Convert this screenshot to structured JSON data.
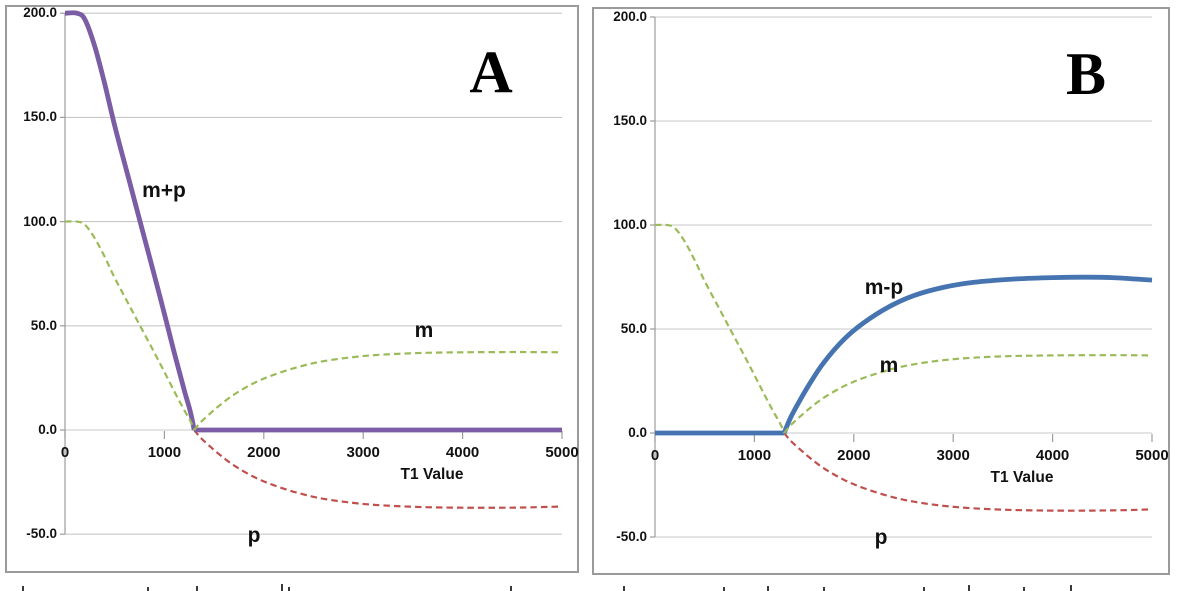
{
  "figure": {
    "colors": {
      "m_plus_p": "#7a5da4",
      "m_minus_p": "#4574b0",
      "m": "#9bbb59",
      "p": "#c0504d",
      "gridline": "#c8c8c8",
      "axis": "#9c9c9c",
      "panel_border": "#9a9a9a",
      "text": "#111111"
    },
    "panels": [
      {
        "corner_label": "A",
        "x_axis": {
          "title": "T1 Value",
          "tick_labels": [
            "0",
            "1000",
            "2000",
            "3000",
            "4000",
            "5000"
          ]
        },
        "y_axis": {
          "tick_labels": [
            "200.0",
            "150.0",
            "100.0",
            "50.0",
            "0.0",
            "-50.0"
          ]
        },
        "curve_labels": {
          "main": "m+p",
          "m": "m",
          "p": "p"
        }
      },
      {
        "corner_label": "B",
        "x_axis": {
          "title": "T1 Value",
          "tick_labels": [
            "0",
            "1000",
            "2000",
            "3000",
            "4000",
            "5000"
          ]
        },
        "y_axis": {
          "tick_labels": [
            "200.0",
            "150.0",
            "100.0",
            "50.0",
            "0.0",
            "-50.0"
          ]
        },
        "curve_labels": {
          "main": "m-p",
          "m": "m",
          "p": "p"
        }
      }
    ],
    "bottom_edge_fragments": [
      {
        "x": 22,
        "h": 5
      },
      {
        "x": 147,
        "h": 4
      },
      {
        "x": 196,
        "h": 5
      },
      {
        "x": 281,
        "h": 7
      },
      {
        "x": 288,
        "h": 4
      },
      {
        "x": 510,
        "h": 5
      },
      {
        "x": 623,
        "h": 5
      },
      {
        "x": 723,
        "h": 4
      },
      {
        "x": 767,
        "h": 5
      },
      {
        "x": 823,
        "h": 4
      },
      {
        "x": 923,
        "h": 4
      },
      {
        "x": 968,
        "h": 6
      },
      {
        "x": 1023,
        "h": 4
      },
      {
        "x": 1070,
        "h": 6
      }
    ]
  },
  "chart_data": [
    {
      "type": "line",
      "panel": "A",
      "xlabel": "T1 Value",
      "ylabel": "",
      "xlim": [
        0,
        5000
      ],
      "ylim": [
        -50,
        200
      ],
      "x_ticks": [
        0,
        1000,
        2000,
        3000,
        4000,
        5000
      ],
      "y_ticks": [
        200,
        150,
        100,
        50,
        0,
        -50
      ],
      "grid": "horizontal",
      "legend": "inline-labels",
      "series": [
        {
          "name": "p",
          "style": "dashed",
          "color_key": "p",
          "segments": [
            [
              [
                1300,
                0
              ],
              [
                1360,
                -3.5
              ],
              [
                1450,
                -7.5
              ],
              [
                1560,
                -12
              ],
              [
                1700,
                -17
              ],
              [
                1900,
                -22.5
              ],
              [
                2100,
                -26.5
              ],
              [
                2350,
                -30.3
              ],
              [
                2600,
                -33
              ],
              [
                2900,
                -35
              ],
              [
                3200,
                -36.2
              ],
              [
                3600,
                -37
              ],
              [
                4000,
                -37.3
              ],
              [
                4400,
                -37.3
              ],
              [
                4700,
                -37.1
              ],
              [
                5000,
                -36.7
              ]
            ]
          ]
        },
        {
          "name": "m+p",
          "style": "solid",
          "color_key": "m_plus_p",
          "segments": [
            [
              [
                0,
                200
              ],
              [
                120,
                200
              ],
              [
                200,
                197
              ],
              [
                300,
                184
              ],
              [
                400,
                166
              ],
              [
                500,
                146
              ],
              [
                650,
                119
              ],
              [
                800,
                92
              ],
              [
                950,
                65
              ],
              [
                1100,
                37
              ],
              [
                1200,
                19
              ],
              [
                1260,
                9
              ],
              [
                1300,
                0
              ]
            ],
            [
              [
                1300,
                0
              ],
              [
                5000,
                0
              ]
            ]
          ]
        },
        {
          "name": "m",
          "style": "dashed",
          "color_key": "m",
          "segments": [
            [
              [
                0,
                100
              ],
              [
                120,
                100
              ],
              [
                200,
                98.5
              ],
              [
                300,
                92
              ],
              [
                400,
                83
              ],
              [
                500,
                73
              ],
              [
                650,
                59.5
              ],
              [
                800,
                46
              ],
              [
                950,
                32.5
              ],
              [
                1100,
                18.5
              ],
              [
                1200,
                9.5
              ],
              [
                1260,
                4.5
              ],
              [
                1300,
                0
              ]
            ],
            [
              [
                1300,
                0
              ],
              [
                1360,
                3.5
              ],
              [
                1450,
                7.5
              ],
              [
                1560,
                12
              ],
              [
                1700,
                17
              ],
              [
                1900,
                22.5
              ],
              [
                2100,
                26.5
              ],
              [
                2350,
                30.3
              ],
              [
                2600,
                33
              ],
              [
                2900,
                35
              ],
              [
                3200,
                36.2
              ],
              [
                3600,
                37
              ],
              [
                4000,
                37.3
              ],
              [
                4400,
                37.4
              ],
              [
                4700,
                37.4
              ],
              [
                5000,
                37.3
              ]
            ]
          ]
        }
      ]
    },
    {
      "type": "line",
      "panel": "B",
      "xlabel": "T1 Value",
      "ylabel": "",
      "xlim": [
        0,
        5000
      ],
      "ylim": [
        -50,
        200
      ],
      "x_ticks": [
        0,
        1000,
        2000,
        3000,
        4000,
        5000
      ],
      "y_ticks": [
        200,
        150,
        100,
        50,
        0,
        -50
      ],
      "grid": "horizontal",
      "legend": "inline-labels",
      "series": [
        {
          "name": "p",
          "style": "dashed",
          "color_key": "p",
          "segments": [
            [
              [
                1300,
                0
              ],
              [
                1360,
                -3.5
              ],
              [
                1450,
                -7.5
              ],
              [
                1560,
                -12
              ],
              [
                1700,
                -17
              ],
              [
                1900,
                -22.5
              ],
              [
                2100,
                -26.5
              ],
              [
                2350,
                -30.3
              ],
              [
                2600,
                -33
              ],
              [
                2900,
                -35
              ],
              [
                3200,
                -36.2
              ],
              [
                3600,
                -37
              ],
              [
                4000,
                -37.3
              ],
              [
                4400,
                -37.3
              ],
              [
                4700,
                -37.1
              ],
              [
                5000,
                -36.7
              ]
            ]
          ]
        },
        {
          "name": "m-p",
          "style": "solid",
          "color_key": "m_minus_p",
          "segments": [
            [
              [
                0,
                0
              ],
              [
                1300,
                0
              ]
            ],
            [
              [
                1300,
                0
              ],
              [
                1360,
                7
              ],
              [
                1450,
                15
              ],
              [
                1560,
                24
              ],
              [
                1700,
                34
              ],
              [
                1900,
                45
              ],
              [
                2100,
                53
              ],
              [
                2350,
                60.6
              ],
              [
                2600,
                66
              ],
              [
                2900,
                70
              ],
              [
                3200,
                72.4
              ],
              [
                3600,
                74
              ],
              [
                4000,
                74.7
              ],
              [
                4300,
                74.9
              ],
              [
                4600,
                74.7
              ],
              [
                5000,
                73.5
              ]
            ]
          ]
        },
        {
          "name": "m",
          "style": "dashed",
          "color_key": "m",
          "segments": [
            [
              [
                0,
                100
              ],
              [
                120,
                100
              ],
              [
                200,
                98.5
              ],
              [
                300,
                92
              ],
              [
                400,
                83
              ],
              [
                500,
                73
              ],
              [
                650,
                59.5
              ],
              [
                800,
                46
              ],
              [
                950,
                32.5
              ],
              [
                1100,
                18.5
              ],
              [
                1200,
                9.5
              ],
              [
                1260,
                4.5
              ],
              [
                1300,
                0
              ]
            ],
            [
              [
                1300,
                0
              ],
              [
                1360,
                3.5
              ],
              [
                1450,
                7.5
              ],
              [
                1560,
                12
              ],
              [
                1700,
                17
              ],
              [
                1900,
                22.5
              ],
              [
                2100,
                26.5
              ],
              [
                2350,
                30.3
              ],
              [
                2600,
                33
              ],
              [
                2900,
                35
              ],
              [
                3200,
                36.2
              ],
              [
                3600,
                37
              ],
              [
                4000,
                37.3
              ],
              [
                4400,
                37.4
              ],
              [
                4700,
                37.4
              ],
              [
                5000,
                37.3
              ]
            ]
          ]
        }
      ]
    }
  ]
}
